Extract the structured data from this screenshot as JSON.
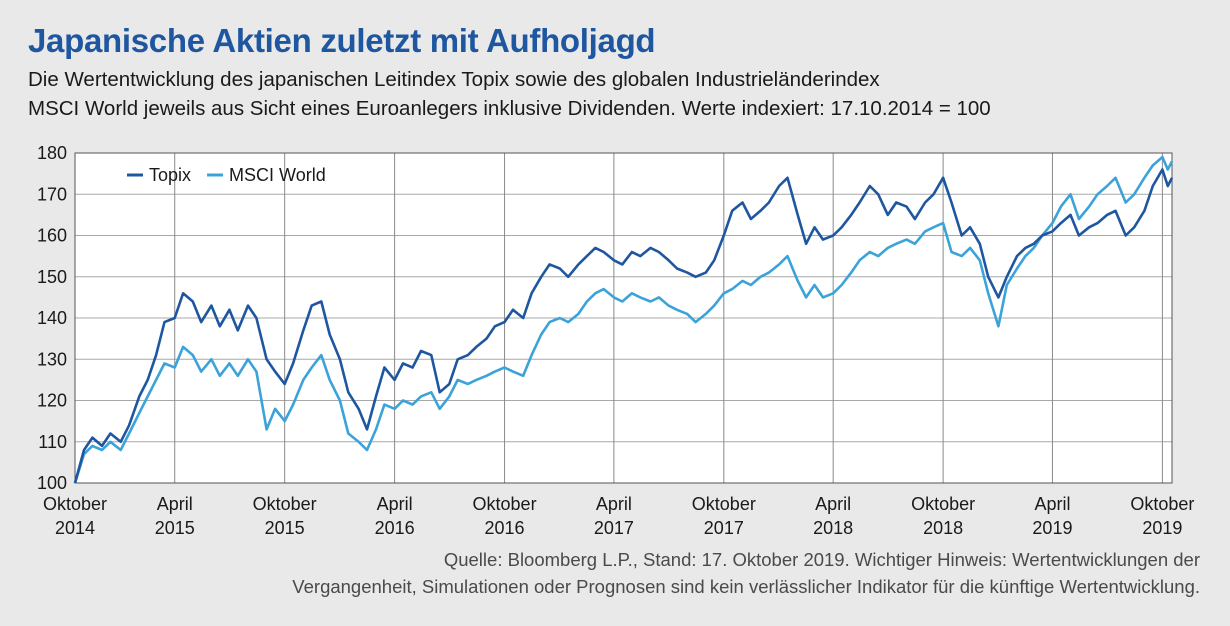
{
  "title": "Japanische Aktien zuletzt mit Aufholjagd",
  "subtitle_line1": "Die Wertentwicklung des japanischen Leitindex Topix sowie des globalen Industrieländerindex",
  "subtitle_line2": "MSCI World jeweils aus Sicht eines Euroanlegers inklusive Dividenden. Werte indexiert: 17.10.2014 = 100",
  "source_line1": "Quelle: Bloomberg L.P., Stand: 17. Oktober 2019. Wichtiger Hinweis: Wertentwicklungen der",
  "source_line2": "Vergangenheit, Simulationen oder Prognosen sind kein verlässlicher Indikator für die künftige Wertentwicklung.",
  "chart_data": {
    "type": "line",
    "ylim": [
      100,
      180
    ],
    "yticks": [
      100,
      110,
      120,
      130,
      140,
      150,
      160,
      170,
      180
    ],
    "grid": true,
    "legend_position": "top-left",
    "xlim": [
      "2014-10-17",
      "2019-10-17"
    ],
    "xticks": [
      {
        "date": "2014-10-17",
        "line1": "Oktober",
        "line2": "2014"
      },
      {
        "date": "2015-04-01",
        "line1": "April",
        "line2": "2015"
      },
      {
        "date": "2015-10-01",
        "line1": "Oktober",
        "line2": "2015"
      },
      {
        "date": "2016-04-01",
        "line1": "April",
        "line2": "2016"
      },
      {
        "date": "2016-10-01",
        "line1": "Oktober",
        "line2": "2016"
      },
      {
        "date": "2017-04-01",
        "line1": "April",
        "line2": "2017"
      },
      {
        "date": "2017-10-01",
        "line1": "Oktober",
        "line2": "2017"
      },
      {
        "date": "2018-04-01",
        "line1": "April",
        "line2": "2018"
      },
      {
        "date": "2018-10-01",
        "line1": "Oktober",
        "line2": "2018"
      },
      {
        "date": "2019-04-01",
        "line1": "April",
        "line2": "2019"
      },
      {
        "date": "2019-10-01",
        "line1": "Oktober",
        "line2": "2019"
      }
    ],
    "series": [
      {
        "name": "Topix",
        "color": "#1f56a0",
        "points": [
          [
            "2014-10-17",
            100
          ],
          [
            "2014-11-01",
            108
          ],
          [
            "2014-11-15",
            111
          ],
          [
            "2014-12-01",
            109
          ],
          [
            "2014-12-15",
            112
          ],
          [
            "2015-01-01",
            110
          ],
          [
            "2015-01-15",
            114
          ],
          [
            "2015-02-01",
            121
          ],
          [
            "2015-02-15",
            125
          ],
          [
            "2015-03-01",
            131
          ],
          [
            "2015-03-15",
            139
          ],
          [
            "2015-04-01",
            140
          ],
          [
            "2015-04-15",
            146
          ],
          [
            "2015-05-01",
            144
          ],
          [
            "2015-05-15",
            139
          ],
          [
            "2015-06-01",
            143
          ],
          [
            "2015-06-15",
            138
          ],
          [
            "2015-07-01",
            142
          ],
          [
            "2015-07-15",
            137
          ],
          [
            "2015-08-01",
            143
          ],
          [
            "2015-08-15",
            140
          ],
          [
            "2015-09-01",
            130
          ],
          [
            "2015-09-15",
            127
          ],
          [
            "2015-10-01",
            124
          ],
          [
            "2015-10-15",
            129
          ],
          [
            "2015-11-01",
            137
          ],
          [
            "2015-11-15",
            143
          ],
          [
            "2015-12-01",
            144
          ],
          [
            "2015-12-15",
            136
          ],
          [
            "2016-01-01",
            130
          ],
          [
            "2016-01-15",
            122
          ],
          [
            "2016-02-01",
            118
          ],
          [
            "2016-02-15",
            113
          ],
          [
            "2016-03-01",
            121
          ],
          [
            "2016-03-15",
            128
          ],
          [
            "2016-04-01",
            125
          ],
          [
            "2016-04-15",
            129
          ],
          [
            "2016-05-01",
            128
          ],
          [
            "2016-05-15",
            132
          ],
          [
            "2016-06-01",
            131
          ],
          [
            "2016-06-15",
            122
          ],
          [
            "2016-07-01",
            124
          ],
          [
            "2016-07-15",
            130
          ],
          [
            "2016-08-01",
            131
          ],
          [
            "2016-08-15",
            133
          ],
          [
            "2016-09-01",
            135
          ],
          [
            "2016-09-15",
            138
          ],
          [
            "2016-10-01",
            139
          ],
          [
            "2016-10-15",
            142
          ],
          [
            "2016-11-01",
            140
          ],
          [
            "2016-11-15",
            146
          ],
          [
            "2016-12-01",
            150
          ],
          [
            "2016-12-15",
            153
          ],
          [
            "2017-01-01",
            152
          ],
          [
            "2017-01-15",
            150
          ],
          [
            "2017-02-01",
            153
          ],
          [
            "2017-02-15",
            155
          ],
          [
            "2017-03-01",
            157
          ],
          [
            "2017-03-15",
            156
          ],
          [
            "2017-04-01",
            154
          ],
          [
            "2017-04-15",
            153
          ],
          [
            "2017-05-01",
            156
          ],
          [
            "2017-05-15",
            155
          ],
          [
            "2017-06-01",
            157
          ],
          [
            "2017-06-15",
            156
          ],
          [
            "2017-07-01",
            154
          ],
          [
            "2017-07-15",
            152
          ],
          [
            "2017-08-01",
            151
          ],
          [
            "2017-08-15",
            150
          ],
          [
            "2017-09-01",
            151
          ],
          [
            "2017-09-15",
            154
          ],
          [
            "2017-10-01",
            160
          ],
          [
            "2017-10-15",
            166
          ],
          [
            "2017-11-01",
            168
          ],
          [
            "2017-11-15",
            164
          ],
          [
            "2017-12-01",
            166
          ],
          [
            "2017-12-15",
            168
          ],
          [
            "2018-01-01",
            172
          ],
          [
            "2018-01-15",
            174
          ],
          [
            "2018-02-01",
            165
          ],
          [
            "2018-02-15",
            158
          ],
          [
            "2018-03-01",
            162
          ],
          [
            "2018-03-15",
            159
          ],
          [
            "2018-04-01",
            160
          ],
          [
            "2018-04-15",
            162
          ],
          [
            "2018-05-01",
            165
          ],
          [
            "2018-05-15",
            168
          ],
          [
            "2018-06-01",
            172
          ],
          [
            "2018-06-15",
            170
          ],
          [
            "2018-07-01",
            165
          ],
          [
            "2018-07-15",
            168
          ],
          [
            "2018-08-01",
            167
          ],
          [
            "2018-08-15",
            164
          ],
          [
            "2018-09-01",
            168
          ],
          [
            "2018-09-15",
            170
          ],
          [
            "2018-10-01",
            174
          ],
          [
            "2018-10-15",
            168
          ],
          [
            "2018-11-01",
            160
          ],
          [
            "2018-11-15",
            162
          ],
          [
            "2018-12-01",
            158
          ],
          [
            "2018-12-15",
            150
          ],
          [
            "2019-01-01",
            145
          ],
          [
            "2019-01-15",
            150
          ],
          [
            "2019-02-01",
            155
          ],
          [
            "2019-02-15",
            157
          ],
          [
            "2019-03-01",
            158
          ],
          [
            "2019-03-15",
            160
          ],
          [
            "2019-04-01",
            161
          ],
          [
            "2019-04-15",
            163
          ],
          [
            "2019-05-01",
            165
          ],
          [
            "2019-05-15",
            160
          ],
          [
            "2019-06-01",
            162
          ],
          [
            "2019-06-15",
            163
          ],
          [
            "2019-07-01",
            165
          ],
          [
            "2019-07-15",
            166
          ],
          [
            "2019-08-01",
            160
          ],
          [
            "2019-08-15",
            162
          ],
          [
            "2019-09-01",
            166
          ],
          [
            "2019-09-15",
            172
          ],
          [
            "2019-10-01",
            176
          ],
          [
            "2019-10-10",
            172
          ],
          [
            "2019-10-17",
            174
          ]
        ]
      },
      {
        "name": "MSCI World",
        "color": "#3ba3d9",
        "points": [
          [
            "2014-10-17",
            100
          ],
          [
            "2014-11-01",
            107
          ],
          [
            "2014-11-15",
            109
          ],
          [
            "2014-12-01",
            108
          ],
          [
            "2014-12-15",
            110
          ],
          [
            "2015-01-01",
            108
          ],
          [
            "2015-01-15",
            112
          ],
          [
            "2015-02-01",
            117
          ],
          [
            "2015-02-15",
            121
          ],
          [
            "2015-03-01",
            125
          ],
          [
            "2015-03-15",
            129
          ],
          [
            "2015-04-01",
            128
          ],
          [
            "2015-04-15",
            133
          ],
          [
            "2015-05-01",
            131
          ],
          [
            "2015-05-15",
            127
          ],
          [
            "2015-06-01",
            130
          ],
          [
            "2015-06-15",
            126
          ],
          [
            "2015-07-01",
            129
          ],
          [
            "2015-07-15",
            126
          ],
          [
            "2015-08-01",
            130
          ],
          [
            "2015-08-15",
            127
          ],
          [
            "2015-09-01",
            113
          ],
          [
            "2015-09-15",
            118
          ],
          [
            "2015-10-01",
            115
          ],
          [
            "2015-10-15",
            119
          ],
          [
            "2015-11-01",
            125
          ],
          [
            "2015-11-15",
            128
          ],
          [
            "2015-12-01",
            131
          ],
          [
            "2015-12-15",
            125
          ],
          [
            "2016-01-01",
            120
          ],
          [
            "2016-01-15",
            112
          ],
          [
            "2016-02-01",
            110
          ],
          [
            "2016-02-15",
            108
          ],
          [
            "2016-03-01",
            113
          ],
          [
            "2016-03-15",
            119
          ],
          [
            "2016-04-01",
            118
          ],
          [
            "2016-04-15",
            120
          ],
          [
            "2016-05-01",
            119
          ],
          [
            "2016-05-15",
            121
          ],
          [
            "2016-06-01",
            122
          ],
          [
            "2016-06-15",
            118
          ],
          [
            "2016-07-01",
            121
          ],
          [
            "2016-07-15",
            125
          ],
          [
            "2016-08-01",
            124
          ],
          [
            "2016-08-15",
            125
          ],
          [
            "2016-09-01",
            126
          ],
          [
            "2016-09-15",
            127
          ],
          [
            "2016-10-01",
            128
          ],
          [
            "2016-10-15",
            127
          ],
          [
            "2016-11-01",
            126
          ],
          [
            "2016-11-15",
            131
          ],
          [
            "2016-12-01",
            136
          ],
          [
            "2016-12-15",
            139
          ],
          [
            "2017-01-01",
            140
          ],
          [
            "2017-01-15",
            139
          ],
          [
            "2017-02-01",
            141
          ],
          [
            "2017-02-15",
            144
          ],
          [
            "2017-03-01",
            146
          ],
          [
            "2017-03-15",
            147
          ],
          [
            "2017-04-01",
            145
          ],
          [
            "2017-04-15",
            144
          ],
          [
            "2017-05-01",
            146
          ],
          [
            "2017-05-15",
            145
          ],
          [
            "2017-06-01",
            144
          ],
          [
            "2017-06-15",
            145
          ],
          [
            "2017-07-01",
            143
          ],
          [
            "2017-07-15",
            142
          ],
          [
            "2017-08-01",
            141
          ],
          [
            "2017-08-15",
            139
          ],
          [
            "2017-09-01",
            141
          ],
          [
            "2017-09-15",
            143
          ],
          [
            "2017-10-01",
            146
          ],
          [
            "2017-10-15",
            147
          ],
          [
            "2017-11-01",
            149
          ],
          [
            "2017-11-15",
            148
          ],
          [
            "2017-12-01",
            150
          ],
          [
            "2017-12-15",
            151
          ],
          [
            "2018-01-01",
            153
          ],
          [
            "2018-01-15",
            155
          ],
          [
            "2018-02-01",
            149
          ],
          [
            "2018-02-15",
            145
          ],
          [
            "2018-03-01",
            148
          ],
          [
            "2018-03-15",
            145
          ],
          [
            "2018-04-01",
            146
          ],
          [
            "2018-04-15",
            148
          ],
          [
            "2018-05-01",
            151
          ],
          [
            "2018-05-15",
            154
          ],
          [
            "2018-06-01",
            156
          ],
          [
            "2018-06-15",
            155
          ],
          [
            "2018-07-01",
            157
          ],
          [
            "2018-07-15",
            158
          ],
          [
            "2018-08-01",
            159
          ],
          [
            "2018-08-15",
            158
          ],
          [
            "2018-09-01",
            161
          ],
          [
            "2018-09-15",
            162
          ],
          [
            "2018-10-01",
            163
          ],
          [
            "2018-10-15",
            156
          ],
          [
            "2018-11-01",
            155
          ],
          [
            "2018-11-15",
            157
          ],
          [
            "2018-12-01",
            154
          ],
          [
            "2018-12-15",
            146
          ],
          [
            "2019-01-01",
            138
          ],
          [
            "2019-01-15",
            148
          ],
          [
            "2019-02-01",
            152
          ],
          [
            "2019-02-15",
            155
          ],
          [
            "2019-03-01",
            157
          ],
          [
            "2019-03-15",
            160
          ],
          [
            "2019-04-01",
            163
          ],
          [
            "2019-04-15",
            167
          ],
          [
            "2019-05-01",
            170
          ],
          [
            "2019-05-15",
            164
          ],
          [
            "2019-06-01",
            167
          ],
          [
            "2019-06-15",
            170
          ],
          [
            "2019-07-01",
            172
          ],
          [
            "2019-07-15",
            174
          ],
          [
            "2019-08-01",
            168
          ],
          [
            "2019-08-15",
            170
          ],
          [
            "2019-09-01",
            174
          ],
          [
            "2019-09-15",
            177
          ],
          [
            "2019-10-01",
            179
          ],
          [
            "2019-10-10",
            176
          ],
          [
            "2019-10-17",
            178
          ]
        ]
      }
    ]
  }
}
